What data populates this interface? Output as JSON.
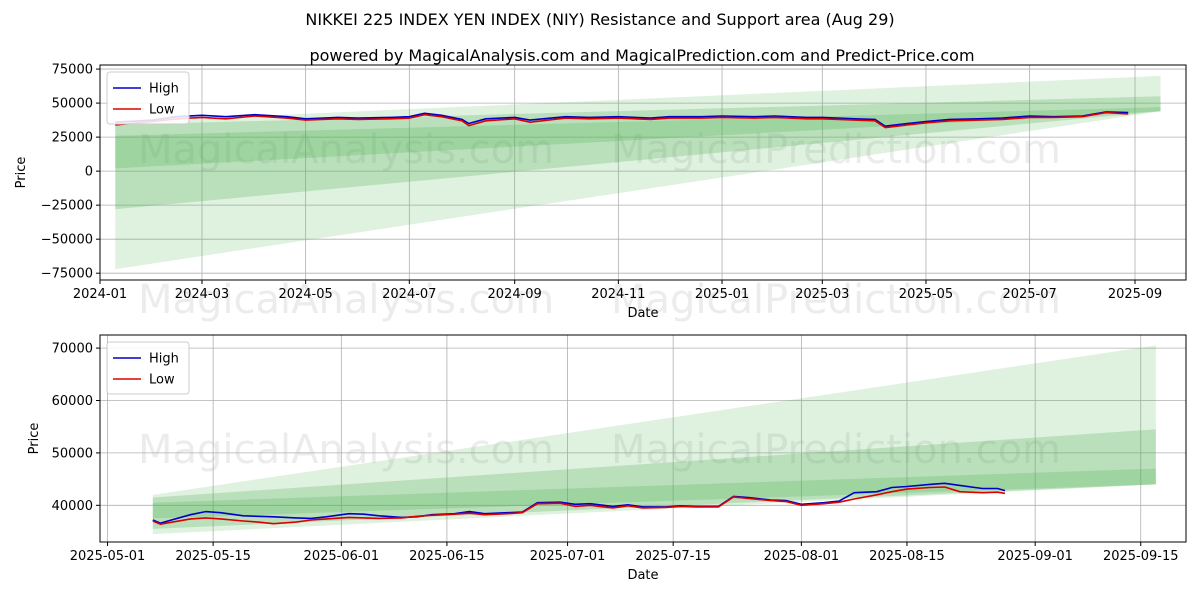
{
  "title": "NIKKEI 225 INDEX YEN INDEX (NIY) Resistance and Support area (Aug 29)",
  "subtitle": "powered by MagicalAnalysis.com and MagicalPrediction.com and Predict-Price.com",
  "watermarks": [
    "MagicalAnalysis.com",
    "MagicalPrediction.com"
  ],
  "colors": {
    "high": "#0000cc",
    "low": "#dd0000",
    "band": "#4caf50",
    "grid": "#b0b0b0"
  },
  "chart_data": [
    {
      "type": "line",
      "xlabel": "Date",
      "ylabel": "Price",
      "xlim": [
        "2024-01-01",
        "2025-10-01"
      ],
      "ylim": [
        -80000,
        78000
      ],
      "xticks": [
        "2024-01",
        "2024-03",
        "2024-05",
        "2024-07",
        "2024-09",
        "2024-11",
        "2025-01",
        "2025-03",
        "2025-05",
        "2025-07",
        "2025-09"
      ],
      "yticks": [
        75000,
        50000,
        25000,
        0,
        -25000,
        -50000,
        -75000
      ],
      "ytick_labels": [
        "75000",
        "50000",
        "25000",
        "0",
        "−25000",
        "−50000",
        "−75000"
      ],
      "grid": true,
      "legend": "top-left",
      "series": [
        {
          "name": "High",
          "color": "#0000cc",
          "x": [
            "2024-01-10",
            "2024-02-01",
            "2024-02-15",
            "2024-03-01",
            "2024-03-15",
            "2024-04-01",
            "2024-04-20",
            "2024-05-01",
            "2024-05-20",
            "2024-06-01",
            "2024-06-20",
            "2024-07-01",
            "2024-07-10",
            "2024-07-20",
            "2024-08-01",
            "2024-08-05",
            "2024-08-15",
            "2024-09-01",
            "2024-09-10",
            "2024-10-01",
            "2024-10-15",
            "2024-11-01",
            "2024-11-20",
            "2024-12-01",
            "2024-12-20",
            "2025-01-01",
            "2025-01-20",
            "2025-02-01",
            "2025-02-20",
            "2025-03-01",
            "2025-03-20",
            "2025-04-01",
            "2025-04-07",
            "2025-04-20",
            "2025-05-01",
            "2025-05-15",
            "2025-06-01",
            "2025-06-15",
            "2025-07-01",
            "2025-07-15",
            "2025-08-01",
            "2025-08-15",
            "2025-08-28"
          ],
          "values": [
            36000,
            37500,
            40000,
            41000,
            40000,
            41500,
            40000,
            38500,
            39500,
            39000,
            39500,
            40000,
            42500,
            41000,
            38000,
            35000,
            38500,
            39500,
            37500,
            40000,
            39500,
            40000,
            39000,
            40000,
            40000,
            40500,
            40000,
            40500,
            39500,
            39500,
            38500,
            38000,
            33000,
            35000,
            36500,
            38000,
            38500,
            39000,
            40500,
            40000,
            40500,
            43500,
            43000
          ]
        },
        {
          "name": "Low",
          "color": "#dd0000",
          "x": [
            "2024-01-10",
            "2024-02-01",
            "2024-02-15",
            "2024-03-01",
            "2024-03-15",
            "2024-04-01",
            "2024-04-20",
            "2024-05-01",
            "2024-05-20",
            "2024-06-01",
            "2024-06-20",
            "2024-07-01",
            "2024-07-10",
            "2024-07-20",
            "2024-08-01",
            "2024-08-05",
            "2024-08-15",
            "2024-09-01",
            "2024-09-10",
            "2024-10-01",
            "2024-10-15",
            "2024-11-01",
            "2024-11-20",
            "2024-12-01",
            "2024-12-20",
            "2025-01-01",
            "2025-01-20",
            "2025-02-01",
            "2025-02-20",
            "2025-03-01",
            "2025-03-20",
            "2025-04-01",
            "2025-04-07",
            "2025-04-20",
            "2025-05-01",
            "2025-05-15",
            "2025-06-01",
            "2025-06-15",
            "2025-07-01",
            "2025-07-15",
            "2025-08-01",
            "2025-08-15",
            "2025-08-28"
          ],
          "values": [
            34000,
            36500,
            38500,
            39500,
            38500,
            40500,
            39000,
            37500,
            38500,
            38000,
            38500,
            39000,
            41500,
            40000,
            37000,
            33500,
            37000,
            38500,
            36000,
            39000,
            38500,
            39000,
            38000,
            39000,
            39000,
            39500,
            39000,
            39500,
            38500,
            38500,
            37500,
            37000,
            32000,
            34000,
            35500,
            37000,
            37500,
            38000,
            39500,
            39500,
            40000,
            43000,
            42000
          ]
        }
      ],
      "bands": [
        {
          "x": [
            "2024-01-10",
            "2025-09-16"
          ],
          "lower": [
            -72000,
            44000
          ],
          "upper": [
            36000,
            70000
          ],
          "opacity": 0.18
        },
        {
          "x": [
            "2024-01-10",
            "2025-09-16"
          ],
          "lower": [
            -28000,
            44000
          ],
          "upper": [
            34000,
            55000
          ],
          "opacity": 0.25
        },
        {
          "x": [
            "2024-01-10",
            "2025-09-16"
          ],
          "lower": [
            2000,
            44000
          ],
          "upper": [
            26000,
            47000
          ],
          "opacity": 0.25
        }
      ]
    },
    {
      "type": "line",
      "xlabel": "Date",
      "ylabel": "Price",
      "xlim": [
        "2025-04-30",
        "2025-09-21"
      ],
      "ylim": [
        33000,
        72500
      ],
      "xticks": [
        "2025-05-01",
        "2025-05-15",
        "2025-06-01",
        "2025-06-15",
        "2025-07-01",
        "2025-07-15",
        "2025-08-01",
        "2025-08-15",
        "2025-09-01",
        "2025-09-15"
      ],
      "yticks": [
        40000,
        50000,
        60000,
        70000
      ],
      "ytick_labels": [
        "40000",
        "50000",
        "60000",
        "70000"
      ],
      "grid": true,
      "legend": "top-left",
      "series": [
        {
          "name": "High",
          "color": "#0000cc",
          "x": [
            "2025-05-07",
            "2025-05-08",
            "2025-05-12",
            "2025-05-14",
            "2025-05-16",
            "2025-05-19",
            "2025-05-21",
            "2025-05-23",
            "2025-05-26",
            "2025-05-28",
            "2025-05-30",
            "2025-06-02",
            "2025-06-04",
            "2025-06-06",
            "2025-06-09",
            "2025-06-11",
            "2025-06-13",
            "2025-06-16",
            "2025-06-18",
            "2025-06-20",
            "2025-06-23",
            "2025-06-25",
            "2025-06-27",
            "2025-06-30",
            "2025-07-02",
            "2025-07-04",
            "2025-07-07",
            "2025-07-09",
            "2025-07-11",
            "2025-07-14",
            "2025-07-16",
            "2025-07-18",
            "2025-07-21",
            "2025-07-23",
            "2025-07-25",
            "2025-07-28",
            "2025-07-30",
            "2025-08-01",
            "2025-08-04",
            "2025-08-06",
            "2025-08-08",
            "2025-08-11",
            "2025-08-13",
            "2025-08-15",
            "2025-08-18",
            "2025-08-20",
            "2025-08-22",
            "2025-08-25",
            "2025-08-27",
            "2025-08-28"
          ],
          "values": [
            37200,
            36600,
            38200,
            38800,
            38600,
            38000,
            37900,
            37800,
            37600,
            37500,
            37800,
            38400,
            38300,
            38000,
            37700,
            37800,
            38200,
            38400,
            38800,
            38400,
            38600,
            38700,
            40500,
            40600,
            40200,
            40300,
            39800,
            40100,
            39700,
            39700,
            39900,
            39800,
            39800,
            41700,
            41500,
            41000,
            40900,
            40200,
            40500,
            40800,
            42400,
            42600,
            43400,
            43600,
            44000,
            44200,
            43800,
            43200,
            43200,
            42800
          ]
        },
        {
          "name": "Low",
          "color": "#dd0000",
          "x": [
            "2025-05-07",
            "2025-05-08",
            "2025-05-12",
            "2025-05-14",
            "2025-05-16",
            "2025-05-19",
            "2025-05-21",
            "2025-05-23",
            "2025-05-26",
            "2025-05-28",
            "2025-05-30",
            "2025-06-02",
            "2025-06-04",
            "2025-06-06",
            "2025-06-09",
            "2025-06-11",
            "2025-06-13",
            "2025-06-16",
            "2025-06-18",
            "2025-06-20",
            "2025-06-23",
            "2025-06-25",
            "2025-06-27",
            "2025-06-30",
            "2025-07-02",
            "2025-07-04",
            "2025-07-07",
            "2025-07-09",
            "2025-07-11",
            "2025-07-14",
            "2025-07-16",
            "2025-07-18",
            "2025-07-21",
            "2025-07-23",
            "2025-07-25",
            "2025-07-28",
            "2025-07-30",
            "2025-08-01",
            "2025-08-04",
            "2025-08-06",
            "2025-08-08",
            "2025-08-11",
            "2025-08-13",
            "2025-08-15",
            "2025-08-18",
            "2025-08-20",
            "2025-08-22",
            "2025-08-25",
            "2025-08-27",
            "2025-08-28"
          ],
          "values": [
            37000,
            36400,
            37400,
            37600,
            37400,
            37000,
            36800,
            36500,
            36800,
            37200,
            37400,
            37700,
            37600,
            37500,
            37600,
            37900,
            38100,
            38300,
            38500,
            38200,
            38400,
            38600,
            40300,
            40400,
            39800,
            40000,
            39500,
            39900,
            39500,
            39600,
            39800,
            39700,
            39700,
            41600,
            41300,
            40900,
            40700,
            40000,
            40300,
            40600,
            41200,
            42000,
            42600,
            43100,
            43400,
            43500,
            42600,
            42400,
            42500,
            42300
          ]
        }
      ],
      "bands": [
        {
          "x": [
            "2025-05-07",
            "2025-09-17"
          ],
          "lower": [
            34500,
            44000
          ],
          "upper": [
            42000,
            70500
          ],
          "opacity": 0.18
        },
        {
          "x": [
            "2025-05-07",
            "2025-09-17"
          ],
          "lower": [
            35500,
            44000
          ],
          "upper": [
            41500,
            54500
          ],
          "opacity": 0.25
        },
        {
          "x": [
            "2025-05-07",
            "2025-09-17"
          ],
          "lower": [
            37500,
            44000
          ],
          "upper": [
            40500,
            47000
          ],
          "opacity": 0.25
        }
      ]
    }
  ]
}
